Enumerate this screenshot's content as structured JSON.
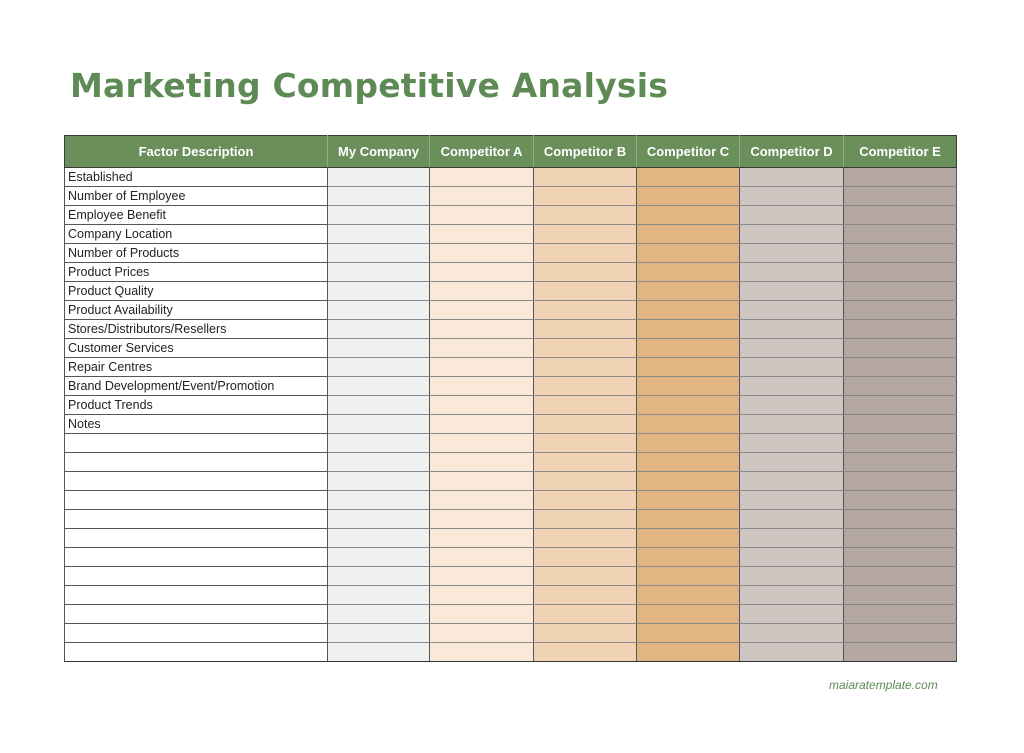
{
  "title": "Marketing Competitive Analysis",
  "table": {
    "headers": [
      "Factor Description",
      "My Company",
      "Competitor A",
      "Competitor B",
      "Competitor C",
      "Competitor D",
      "Competitor E"
    ],
    "column_colors": [
      "#ffffff",
      "#f0f0f0",
      "#fae8d8",
      "#f0d2b5",
      "#e2b583",
      "#d0c6c1",
      "#b5a7a1"
    ],
    "header_color": "#6a8f5b",
    "rows": [
      "Established",
      "Number of Employee",
      "Employee Benefit",
      "Company Location",
      "Number of Products",
      "Product Prices",
      "Product Quality",
      "Product Availability",
      "Stores/Distributors/Resellers",
      "Customer Services",
      "Repair Centres",
      "Brand Development/Event/Promotion",
      "Product Trends",
      "Notes",
      "",
      "",
      "",
      "",
      "",
      "",
      "",
      "",
      "",
      "",
      "",
      ""
    ]
  },
  "footer": "maiaratemplate.com"
}
